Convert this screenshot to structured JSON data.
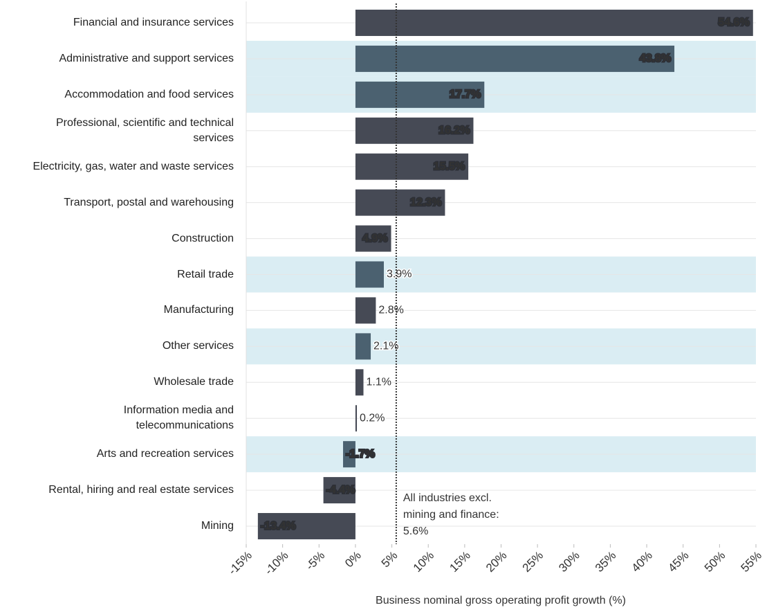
{
  "chart_data": {
    "type": "bar",
    "orientation": "horizontal",
    "categories": [
      "Financial and insurance services",
      "Administrative and support services",
      "Accommodation and food services",
      "Professional, scientific and technical\nservices",
      "Electricity, gas, water and waste services",
      "Transport, postal and warehousing",
      "Construction",
      "Retail trade",
      "Manufacturing",
      "Other services",
      "Wholesale trade",
      "Information media and\ntelecommunications",
      "Arts and recreation services",
      "Rental, hiring and real estate services",
      "Mining"
    ],
    "values": [
      54.6,
      43.8,
      17.7,
      16.2,
      15.5,
      12.3,
      4.9,
      3.9,
      2.8,
      2.1,
      1.1,
      0.2,
      -1.7,
      -4.4,
      -13.4
    ],
    "value_labels": [
      "54.6%",
      "43.8%",
      "17.7%",
      "16.2%",
      "15.5%",
      "12.3%",
      "4.9%",
      "3.9%",
      "2.8%",
      "2.1%",
      "1.1%",
      "0.2%",
      "-1.7%",
      "-4.4%",
      "-13.4%"
    ],
    "highlight": [
      false,
      true,
      true,
      false,
      false,
      false,
      false,
      true,
      false,
      true,
      false,
      false,
      true,
      false,
      false
    ],
    "color": "#464a55",
    "highlight_color": "#4b6170",
    "highlight_band_color": "#daedf3",
    "xlim": [
      -15,
      55
    ],
    "xticks": [
      {
        "value": -15,
        "label": "-15%"
      },
      {
        "value": -10,
        "label": "-10%"
      },
      {
        "value": -5,
        "label": "-5%"
      },
      {
        "value": 0,
        "label": "0%"
      },
      {
        "value": 5,
        "label": "5%"
      },
      {
        "value": 10,
        "label": "10%"
      },
      {
        "value": 15,
        "label": "15%"
      },
      {
        "value": 20,
        "label": "20%"
      },
      {
        "value": 25,
        "label": "25%"
      },
      {
        "value": 30,
        "label": "30%"
      },
      {
        "value": 35,
        "label": "35%"
      },
      {
        "value": 40,
        "label": "40%"
      },
      {
        "value": 45,
        "label": "45%"
      },
      {
        "value": 50,
        "label": "50%"
      },
      {
        "value": 55,
        "label": "55%"
      }
    ],
    "xlabel": "Business nominal gross operating profit growth (%)",
    "reference": {
      "value": 5.6,
      "label_lines": [
        "All industries excl.",
        "mining and finance:",
        "5.6%"
      ]
    },
    "grid": true
  }
}
